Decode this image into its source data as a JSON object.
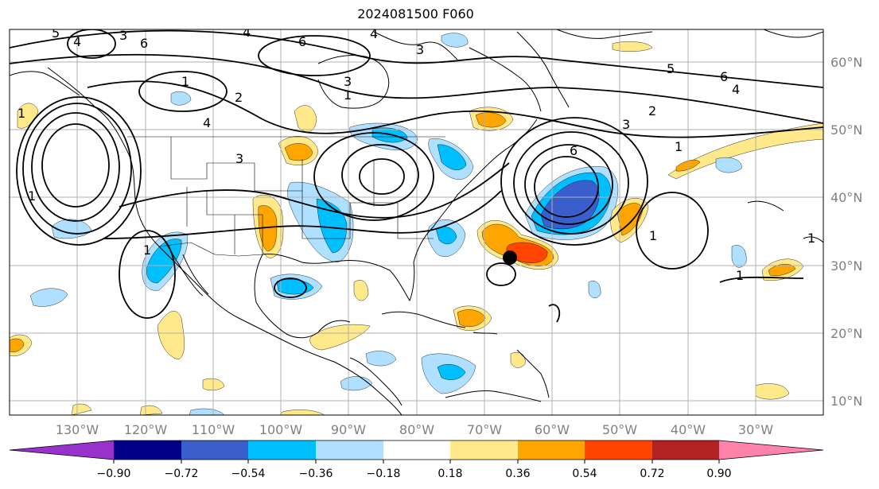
{
  "title": "2024081500 F060",
  "map": {
    "longitude_labels": [
      "130°W",
      "120°W",
      "110°W",
      "100°W",
      "90°W",
      "80°W",
      "70°W",
      "60°W",
      "50°W",
      "40°W",
      "30°W"
    ],
    "latitude_labels": [
      "60°N",
      "50°N",
      "40°N",
      "30°N",
      "20°N",
      "10°N"
    ],
    "contour_labels": [
      "5",
      "4",
      "3",
      "6",
      "4",
      "1",
      "2",
      "4",
      "3",
      "3",
      "1",
      "6",
      "4",
      "3",
      "2",
      "3",
      "1",
      "6",
      "1",
      "1",
      "5",
      "6",
      "4",
      "1",
      "1",
      "1",
      "1"
    ],
    "marker": {
      "name": "storm-center",
      "lon": "-65",
      "lat": "31"
    }
  },
  "colorbar": {
    "ticks": [
      "−0.90",
      "−0.72",
      "−0.54",
      "−0.36",
      "−0.18",
      "0.18",
      "0.36",
      "0.54",
      "0.72",
      "0.90"
    ],
    "colors": [
      "#9932cc",
      "#00008b",
      "#3a5fcd",
      "#00bfff",
      "#b0e0ff",
      "#ffffff",
      "#ffe98a",
      "#ffa500",
      "#ff4500",
      "#b22222",
      "#ff82ab"
    ]
  }
}
